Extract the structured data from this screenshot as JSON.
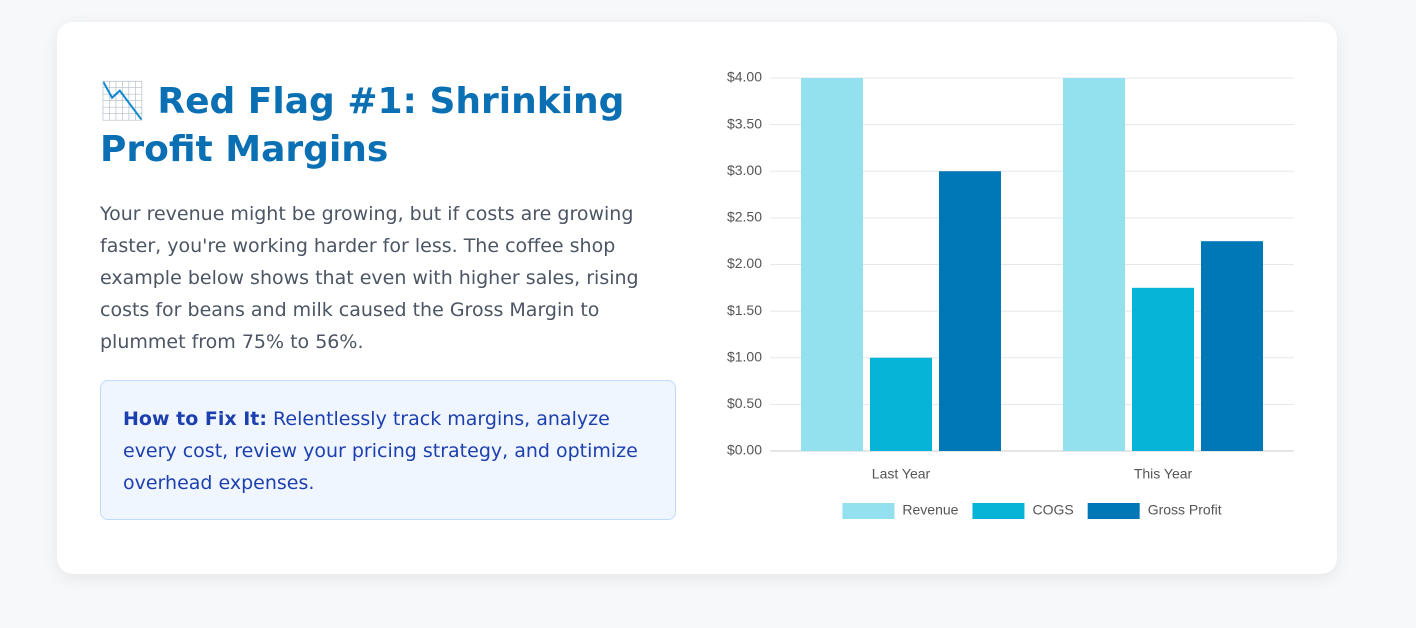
{
  "heading": "📉 Red Flag #1: Shrinking Profit Margins",
  "paragraph": "Your revenue might be growing, but if costs are growing faster, you're working harder for less. The coffee shop example below shows that even with higher sales, rising costs for beans and milk caused the Gross Margin to plummet from 75% to 56%.",
  "callout": {
    "label": "How to Fix It:",
    "text": "Relentlessly track margins, analyze every cost, review your pricing strategy, and optimize overhead expenses."
  },
  "chart_data": {
    "type": "bar",
    "categories": [
      "Last Year",
      "This Year"
    ],
    "series": [
      {
        "name": "Revenue",
        "color": "#93e0ef",
        "values": [
          4,
          4
        ]
      },
      {
        "name": "COGS",
        "color": "#06b4d8",
        "values": [
          1,
          1.75
        ]
      },
      {
        "name": "Gross Profit",
        "color": "#0077b6",
        "values": [
          3,
          2.25
        ]
      }
    ],
    "ylim": [
      0,
      4
    ],
    "yticks": [
      {
        "value": 0,
        "label": "$0.00"
      },
      {
        "value": 0.5,
        "label": "$0.50"
      },
      {
        "value": 1,
        "label": "$1.00"
      },
      {
        "value": 1.5,
        "label": "$1.50"
      },
      {
        "value": 2,
        "label": "$2.00"
      },
      {
        "value": 2.5,
        "label": "$2.50"
      },
      {
        "value": 3,
        "label": "$3.00"
      },
      {
        "value": 3.5,
        "label": "$3.50"
      },
      {
        "value": 4,
        "label": "$4.00"
      }
    ],
    "grid": true,
    "legend": "bottom"
  }
}
